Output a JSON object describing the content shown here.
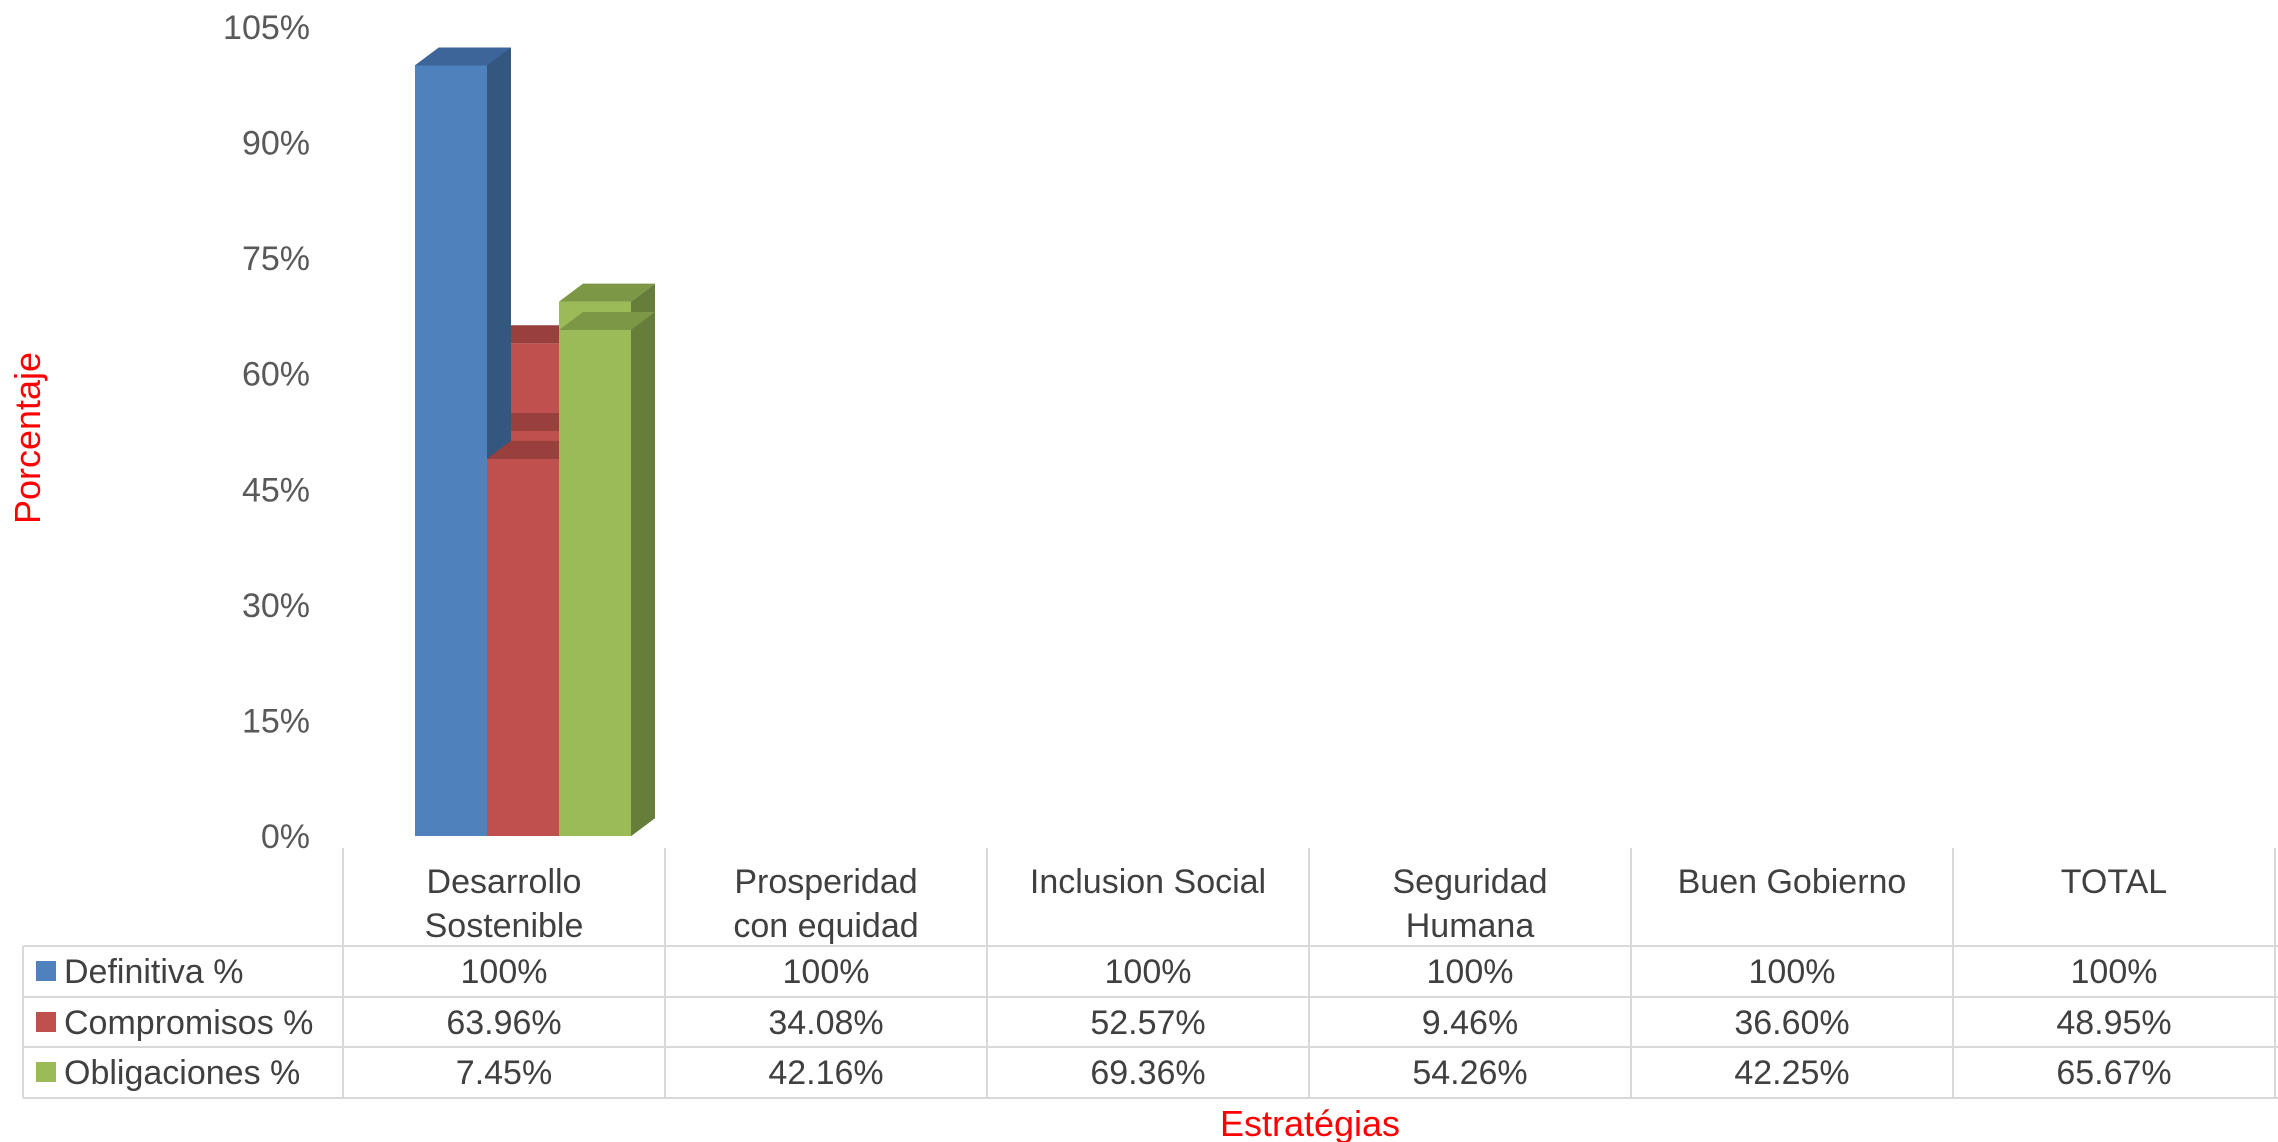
{
  "chart_data": {
    "type": "bar",
    "variant": "3d-clustered-column-with-data-table",
    "categories": [
      [
        "Desarrollo",
        "Sostenible"
      ],
      [
        "Prosperidad",
        "con equidad"
      ],
      [
        "Inclusion Social"
      ],
      [
        "Seguridad",
        "Humana"
      ],
      [
        "Buen Gobierno"
      ],
      [
        "TOTAL"
      ]
    ],
    "series": [
      {
        "name": "Definitiva %",
        "color": "#4f81bd",
        "side_color": "#34577f",
        "top_color": "#3d6599",
        "values": [
          100,
          100,
          100,
          100,
          100,
          100
        ],
        "labels": [
          "100%",
          "100%",
          "100%",
          "100%",
          "100%",
          "100%"
        ]
      },
      {
        "name": "Compromisos %",
        "color": "#c0504d",
        "side_color": "#7f3432",
        "top_color": "#993f3d",
        "values": [
          63.96,
          34.08,
          52.57,
          9.46,
          36.6,
          48.95
        ],
        "labels": [
          "63.96%",
          "34.08%",
          "52.57%",
          "9.46%",
          "36.60%",
          "48.95%"
        ]
      },
      {
        "name": "Obligaciones %",
        "color": "#9bbb59",
        "side_color": "#677e3a",
        "top_color": "#7c9745",
        "values": [
          7.45,
          42.16,
          69.36,
          54.26,
          42.25,
          65.67
        ],
        "labels": [
          "7.45%",
          "42.16%",
          "69.36%",
          "54.26%",
          "42.25%",
          "65.67%"
        ]
      }
    ],
    "yticks": [
      "0%",
      "15%",
      "30%",
      "45%",
      "60%",
      "75%",
      "90%",
      "105%"
    ],
    "ylim": [
      0,
      105
    ],
    "ylabel": "Porcentaje",
    "xlabel": "Estratégias",
    "grid": false,
    "legend": "data-table-left"
  }
}
